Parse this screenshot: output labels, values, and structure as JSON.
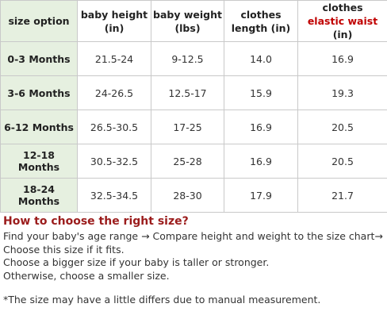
{
  "table": {
    "headers": {
      "size": "size option",
      "height_l1": "baby height",
      "height_l2": "(in)",
      "weight_l1": "baby weight",
      "weight_l2": "(lbs)",
      "length_l1": "clothes",
      "length_l2": "length (in)",
      "waist_l1": "clothes",
      "waist_l2_accent": "elastic waist",
      "waist_l2_unit": " (in)"
    },
    "rows": [
      {
        "size": "0-3 Months",
        "height": "21.5-24",
        "weight": "9-12.5",
        "length": "14.0",
        "waist": "16.9"
      },
      {
        "size": "3-6 Months",
        "height": "24-26.5",
        "weight": "12.5-17",
        "length": "15.9",
        "waist": "19.3"
      },
      {
        "size": "6-12 Months",
        "height": "26.5-30.5",
        "weight": "17-25",
        "length": "16.9",
        "waist": "20.5"
      },
      {
        "size": "12-18 Months",
        "height": "30.5-32.5",
        "weight": "25-28",
        "length": "16.9",
        "waist": "20.5"
      },
      {
        "size": "18-24 Months",
        "height": "32.5-34.5",
        "weight": "28-30",
        "length": "17.9",
        "waist": "21.7"
      }
    ]
  },
  "guide": {
    "title": "How to choose the right size?",
    "step1": "Find your baby's age range → Compare height and weight to the size chart→",
    "line2": "Choose this size if it fits.",
    "line3": "Choose a bigger size if your baby is taller or stronger.",
    "line4": "Otherwise, choose a smaller size.",
    "footnote": "*The size may have a little differs due to manual measurement."
  },
  "colors": {
    "size_column_bg": "#e6f0e0",
    "accent_red": "#c00000",
    "title_red": "#9b1c1c",
    "border": "#c9c9c9"
  }
}
